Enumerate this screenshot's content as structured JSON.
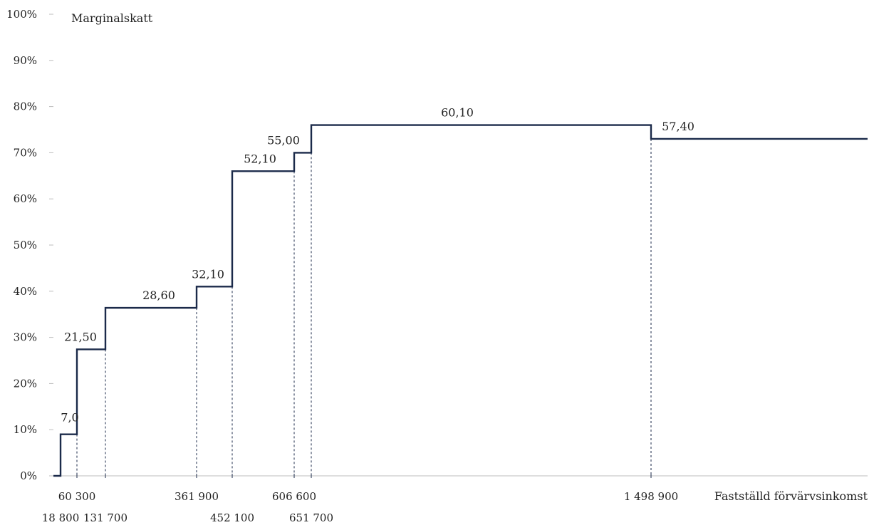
{
  "chart_data": {
    "type": "line",
    "step": true,
    "title": "",
    "ylabel": "Marginalskatt",
    "xlabel": "Fastställd förvärvsinkomst",
    "ylim": [
      0,
      100
    ],
    "y_ticks": [
      "0%",
      "10%",
      "20%",
      "30%",
      "40%",
      "50%",
      "60%",
      "70%",
      "80%",
      "90%",
      "100%"
    ],
    "x_breakpoints": [
      18800,
      60300,
      131700,
      361900,
      452100,
      606600,
      651700,
      1498900
    ],
    "x_tick_labels": [
      "18 800",
      "60 300",
      "131 700",
      "361 900",
      "452 100",
      "606 600",
      "651 700",
      "1 498 900"
    ],
    "steps": [
      {
        "from": 0,
        "to": 18800,
        "value": 0,
        "label": ""
      },
      {
        "from": 18800,
        "to": 60300,
        "value": 9,
        "label": "7,0"
      },
      {
        "from": 60300,
        "to": 131700,
        "value": 27.4,
        "label": "21,50"
      },
      {
        "from": 131700,
        "to": 361900,
        "value": 36.4,
        "label": "28,60"
      },
      {
        "from": 361900,
        "to": 452100,
        "value": 41,
        "label": "32,10"
      },
      {
        "from": 452100,
        "to": 606600,
        "value": 66,
        "label": "52,10"
      },
      {
        "from": 606600,
        "to": 651700,
        "value": 70,
        "label": "55,00"
      },
      {
        "from": 651700,
        "to": 1498900,
        "value": 76,
        "label": "60,10"
      },
      {
        "from": 1498900,
        "to": 2050000,
        "value": 73,
        "label": "57,40"
      }
    ],
    "line_color": "#1b2a4a",
    "grid": false
  }
}
